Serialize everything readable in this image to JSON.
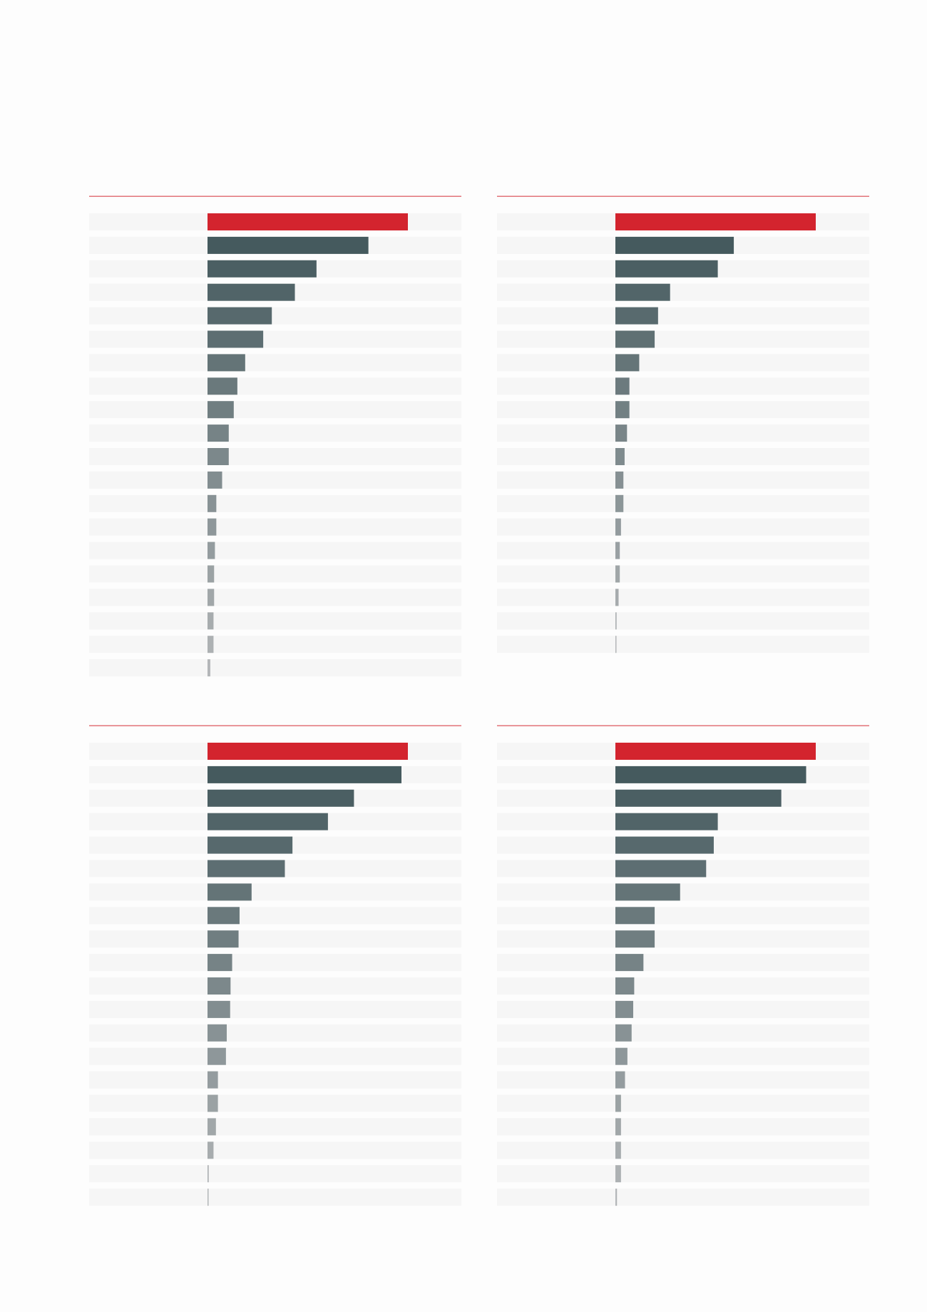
{
  "colors": {
    "highlight": "#d3242e",
    "bar_dark": "#455a5e",
    "bar_light": "#b3b6b8",
    "row_background": "#f6f6f6",
    "rule": "#e06a70"
  },
  "chart_data": [
    {
      "type": "bar",
      "orientation": "horizontal",
      "position": "top-left",
      "xlim": [
        0,
        100
      ],
      "values": [
        100,
        80.3,
        54.4,
        43.6,
        32.1,
        27.8,
        18.8,
        14.9,
        13.1,
        10.6,
        10.6,
        7.3,
        4.4,
        4.4,
        3.7,
        3.3,
        3.3,
        3.0,
        3.0,
        1.4
      ]
    },
    {
      "type": "bar",
      "orientation": "horizontal",
      "position": "top-right",
      "xlim": [
        0,
        100
      ],
      "values": [
        100,
        59.1,
        51.1,
        27.3,
        21.3,
        19.6,
        11.9,
        7.0,
        7.0,
        5.8,
        4.6,
        4.0,
        4.0,
        2.8,
        2.2,
        2.2,
        1.6,
        0.6,
        0.4
      ]
    },
    {
      "type": "bar",
      "orientation": "horizontal",
      "position": "bottom-left",
      "xlim": [
        0,
        100
      ],
      "values": [
        100,
        96.8,
        73.1,
        60.1,
        42.4,
        38.6,
        22.0,
        16.0,
        15.5,
        12.3,
        11.5,
        11.3,
        9.6,
        9.2,
        5.2,
        5.2,
        4.2,
        3.0,
        0.6,
        0.4
      ]
    },
    {
      "type": "bar",
      "orientation": "horizontal",
      "position": "bottom-right",
      "xlim": [
        0,
        100
      ],
      "values": [
        100,
        95.2,
        82.8,
        51.1,
        49.1,
        45.3,
        32.3,
        19.6,
        19.6,
        14.0,
        9.4,
        8.9,
        8.1,
        6.0,
        4.8,
        2.8,
        2.8,
        2.8,
        2.8,
        0.8
      ]
    }
  ]
}
